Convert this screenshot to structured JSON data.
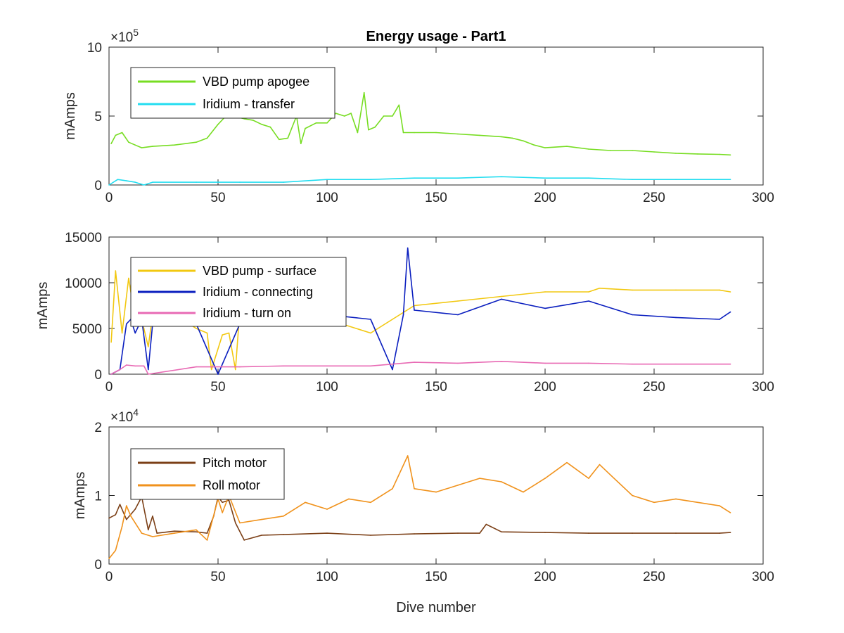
{
  "chart_data": [
    {
      "type": "line",
      "title": "Energy usage - Part1",
      "xlabel": "",
      "ylabel": "mAmps",
      "xlim": [
        0,
        300
      ],
      "ylim": [
        0,
        1000000
      ],
      "xticks": [
        "0",
        "50",
        "100",
        "150",
        "200",
        "250",
        "300"
      ],
      "yticks": [
        "0",
        "5",
        "10"
      ],
      "exponent_base": "×10",
      "exponent_power": "5",
      "legend_location": "top-left",
      "series": [
        {
          "name": "VBD pump apogee",
          "color": "#77dd22",
          "x": [
            1,
            3,
            6,
            9,
            12,
            15,
            20,
            30,
            40,
            45,
            50,
            53,
            57,
            62,
            66,
            70,
            74,
            78,
            82,
            86,
            88,
            90,
            95,
            100,
            104,
            108,
            111,
            114,
            117,
            119,
            122,
            126,
            130,
            133,
            135,
            140,
            150,
            160,
            170,
            180,
            185,
            190,
            195,
            200,
            210,
            220,
            230,
            240,
            250,
            260,
            270,
            280,
            285
          ],
          "y": [
            300000,
            360000,
            380000,
            310000,
            290000,
            270000,
            280000,
            290000,
            310000,
            340000,
            440000,
            490000,
            500000,
            480000,
            470000,
            440000,
            420000,
            330000,
            340000,
            500000,
            300000,
            410000,
            450000,
            450000,
            520000,
            500000,
            520000,
            380000,
            670000,
            400000,
            420000,
            500000,
            500000,
            580000,
            380000,
            380000,
            380000,
            370000,
            360000,
            350000,
            340000,
            320000,
            290000,
            270000,
            280000,
            260000,
            250000,
            250000,
            240000,
            230000,
            225000,
            222000,
            218000
          ]
        },
        {
          "name": "Iridium - transfer",
          "color": "#22ddf0",
          "x": [
            0,
            4,
            8,
            12,
            16,
            20,
            40,
            60,
            80,
            100,
            120,
            140,
            160,
            180,
            200,
            220,
            240,
            260,
            285
          ],
          "y": [
            0,
            40000,
            30000,
            20000,
            0,
            20000,
            20000,
            20000,
            20000,
            40000,
            40000,
            50000,
            50000,
            60000,
            50000,
            50000,
            40000,
            40000,
            40000
          ]
        }
      ]
    },
    {
      "type": "line",
      "title": "",
      "xlabel": "",
      "ylabel": "mAmps",
      "xlim": [
        0,
        300
      ],
      "ylim": [
        0,
        15000
      ],
      "xticks": [
        "0",
        "50",
        "100",
        "150",
        "200",
        "250",
        "300"
      ],
      "yticks": [
        "0",
        "5000",
        "10000",
        "15000"
      ],
      "legend_location": "top-left",
      "series": [
        {
          "name": "VBD pump - surface",
          "color": "#f2c811",
          "x": [
            1,
            3,
            6,
            9,
            12,
            14,
            18,
            20,
            30,
            40,
            45,
            47,
            52,
            55,
            58,
            60,
            80,
            100,
            120,
            140,
            160,
            180,
            200,
            220,
            225,
            240,
            260,
            280,
            285
          ],
          "y": [
            3500,
            11300,
            4500,
            10500,
            6000,
            7000,
            3000,
            6500,
            6500,
            5000,
            4500,
            500,
            4300,
            4500,
            500,
            7000,
            6000,
            6000,
            4500,
            7500,
            8000,
            8500,
            9000,
            9000,
            9400,
            9200,
            9200,
            9200,
            9000
          ]
        },
        {
          "name": "Iridium - connecting",
          "color": "#0a1ebf",
          "x": [
            1,
            5,
            8,
            10,
            12,
            15,
            18,
            20,
            30,
            40,
            50,
            60,
            80,
            100,
            120,
            130,
            135,
            137,
            140,
            160,
            180,
            200,
            220,
            240,
            260,
            280,
            285
          ],
          "y": [
            0,
            500,
            5500,
            6000,
            4500,
            6000,
            500,
            5500,
            5500,
            5500,
            0,
            5500,
            6000,
            6500,
            6000,
            500,
            6500,
            13800,
            7000,
            6500,
            8200,
            7200,
            8000,
            6500,
            6200,
            6000,
            6800
          ]
        },
        {
          "name": "Iridium - turn on",
          "color": "#e86ab4",
          "x": [
            1,
            5,
            8,
            12,
            16,
            18,
            40,
            60,
            80,
            100,
            120,
            140,
            160,
            180,
            200,
            220,
            240,
            260,
            285
          ],
          "y": [
            0,
            500,
            1000,
            900,
            900,
            0,
            800,
            800,
            900,
            900,
            900,
            1300,
            1200,
            1400,
            1200,
            1200,
            1100,
            1100,
            1100
          ]
        }
      ]
    },
    {
      "type": "line",
      "title": "",
      "xlabel": "Dive number",
      "ylabel": "mAmps",
      "xlim": [
        0,
        300
      ],
      "ylim": [
        0,
        20000
      ],
      "xticks": [
        "0",
        "50",
        "100",
        "150",
        "200",
        "250",
        "300"
      ],
      "yticks": [
        "0",
        "1",
        "2"
      ],
      "exponent_base": "×10",
      "exponent_power": "4",
      "legend_location": "top-left",
      "series": [
        {
          "name": "Pitch motor",
          "color": "#7b3f16",
          "x": [
            0,
            3,
            5,
            8,
            12,
            15,
            18,
            20,
            22,
            30,
            40,
            45,
            48,
            50,
            52,
            55,
            58,
            62,
            70,
            80,
            100,
            120,
            140,
            160,
            170,
            173,
            180,
            200,
            220,
            240,
            260,
            280,
            285
          ],
          "y": [
            6700,
            7200,
            8700,
            6500,
            8000,
            9800,
            5000,
            7000,
            4500,
            4800,
            4700,
            4500,
            7000,
            9800,
            9000,
            9300,
            6000,
            3500,
            4200,
            4300,
            4500,
            4200,
            4400,
            4500,
            4500,
            5800,
            4700,
            4600,
            4500,
            4500,
            4500,
            4500,
            4600
          ]
        },
        {
          "name": "Roll motor",
          "color": "#f0921c",
          "x": [
            0,
            3,
            6,
            8,
            10,
            15,
            20,
            30,
            40,
            45,
            50,
            52,
            55,
            60,
            70,
            80,
            90,
            100,
            110,
            120,
            130,
            137,
            140,
            150,
            160,
            170,
            180,
            190,
            200,
            210,
            220,
            225,
            230,
            240,
            250,
            260,
            270,
            280,
            285
          ],
          "y": [
            800,
            2000,
            5500,
            8500,
            7000,
            4500,
            4000,
            4500,
            5000,
            3500,
            9500,
            7500,
            10000,
            6000,
            6500,
            7000,
            9000,
            8000,
            9500,
            9000,
            11000,
            15800,
            11000,
            10500,
            11500,
            12500,
            12000,
            10500,
            12500,
            14800,
            12500,
            14500,
            13000,
            10000,
            9000,
            9500,
            9000,
            8500,
            7500
          ]
        }
      ]
    }
  ]
}
